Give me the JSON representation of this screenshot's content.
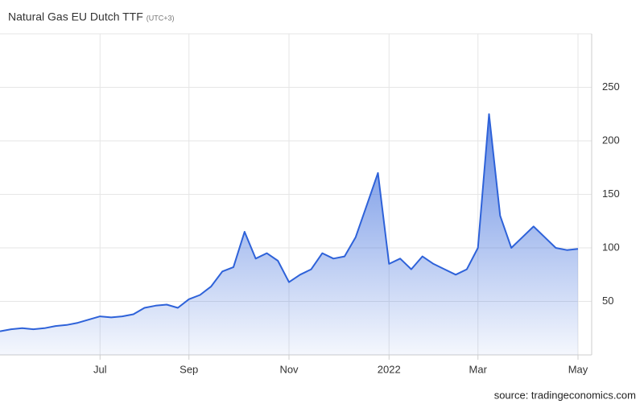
{
  "chart_data": {
    "type": "area",
    "title": "Natural Gas EU Dutch TTF",
    "subtitle": "(UTC+3)",
    "source": "source: tradingeconomics.com",
    "color": "#2e62d9",
    "categories": [
      null,
      null,
      null,
      null,
      null,
      null,
      null,
      null,
      null,
      "Jul",
      null,
      null,
      null,
      null,
      null,
      null,
      null,
      "Sep",
      null,
      null,
      null,
      null,
      null,
      null,
      null,
      null,
      "Nov",
      null,
      null,
      null,
      null,
      null,
      null,
      null,
      null,
      "2022",
      null,
      null,
      null,
      null,
      null,
      null,
      null,
      "Mar",
      null,
      null,
      null,
      null,
      null,
      null,
      null,
      null,
      "May"
    ],
    "values": [
      22,
      24,
      25,
      24,
      25,
      27,
      28,
      30,
      33,
      36,
      35,
      36,
      38,
      44,
      46,
      47,
      44,
      52,
      56,
      64,
      78,
      82,
      115,
      90,
      95,
      88,
      68,
      75,
      80,
      95,
      90,
      92,
      110,
      140,
      170,
      85,
      90,
      80,
      92,
      85,
      80,
      75,
      80,
      100,
      225,
      130,
      100,
      110,
      120,
      110,
      100,
      98,
      99
    ],
    "ylim": [
      0,
      300
    ],
    "yticks": [
      50,
      100,
      150,
      200,
      250
    ],
    "grid": true
  }
}
